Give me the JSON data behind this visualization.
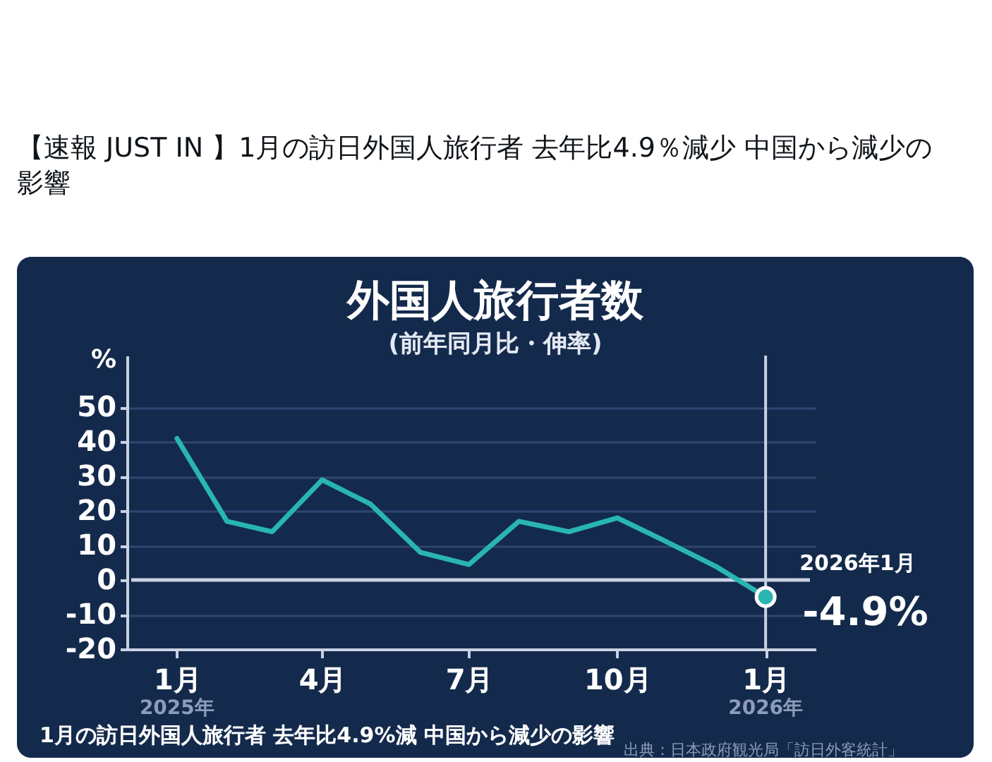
{
  "chart_data": {
    "type": "line",
    "title": "外国人旅行者数",
    "subtitle": "(前年同月比・伸率)",
    "ylabel": "%",
    "x": [
      "2025-01",
      "2025-02",
      "2025-03",
      "2025-04",
      "2025-05",
      "2025-06",
      "2025-07",
      "2025-08",
      "2025-09",
      "2025-10",
      "2025-11",
      "2025-12",
      "2026-01"
    ],
    "series": [
      {
        "color": "#29b6b3",
        "values": [
          41,
          17,
          14,
          29,
          22,
          8,
          4.5,
          17,
          14,
          18,
          11,
          4,
          -4.9
        ],
        "value_labels": [
          null,
          null,
          null,
          null,
          null,
          null,
          null,
          null,
          null,
          null,
          null,
          null,
          "-4.9%"
        ]
      },
      {
        "type": "scatter",
        "x": [
          "2026-01"
        ],
        "values": [
          -4.9
        ],
        "color": "#29b6b3",
        "marker": "circle"
      }
    ],
    "marker": "none",
    "xlim": [
      "2024-12",
      "2026-02"
    ],
    "ylim": [
      -20,
      65
    ],
    "xticks": [
      {
        "value": "2025-01",
        "label": "1月"
      },
      {
        "value": "2025-04",
        "label": "4月"
      },
      {
        "value": "2025-07",
        "label": "7月"
      },
      {
        "value": "2025-10",
        "label": "10月"
      },
      {
        "value": "2026-01",
        "label": "1月"
      }
    ],
    "yticks": [
      -20,
      -10,
      0,
      10,
      20,
      30,
      40,
      50
    ],
    "grid": "y",
    "ref_lines": [
      {
        "axis": "y",
        "value": 0,
        "color": "#c9d1e3"
      },
      {
        "axis": "x",
        "value": "2026-01",
        "color": "#c9d1e3"
      }
    ],
    "annotations": [
      "【速報 JUST IN 】1月の訪日外国人旅行者 去年比4.9％減少 中国から減少の影響",
      {
        "text": "2026年1月",
        "x": "2026-01",
        "y": -4.9
      },
      "2025年",
      "2026年",
      "1月の訪日外国人旅行者 去年比4.9%減 中国から減少の影響",
      "出典：日本政府観光局「訪日外客統計」"
    ]
  }
}
